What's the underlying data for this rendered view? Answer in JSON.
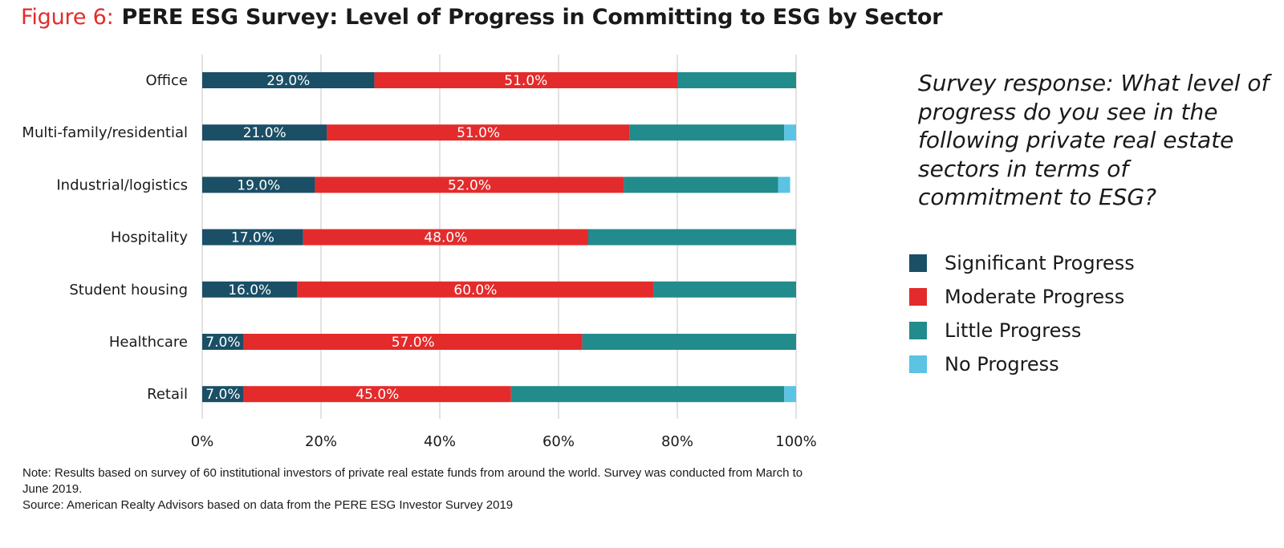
{
  "figure_label": "Figure 6:",
  "title": "PERE ESG Survey: Level of Progress in Committing to ESG by Sector",
  "question": "Survey response: What level of progress do you see in the following private real estate sectors in terms of commitment to ESG?",
  "note_line1": "Note: Results based on survey of 60 institutional investors of private real estate funds from around the world. Survey was conducted from March to June 2019.",
  "note_line2": "Source: American Realty Advisors based on data from the PERE ESG Investor Survey 2019",
  "colors": {
    "significant": "#1a4f66",
    "moderate": "#e32b2b",
    "little": "#228b8b",
    "none": "#5bc3e3",
    "grid": "#d9d9d9"
  },
  "chart_data": {
    "type": "bar",
    "orientation": "horizontal",
    "stacked": true,
    "title": "",
    "xlabel": "",
    "ylabel": "",
    "xlim": [
      0,
      100
    ],
    "x_ticks": [
      "0%",
      "20%",
      "40%",
      "60%",
      "80%",
      "100%"
    ],
    "grid": true,
    "legend_position": "right",
    "categories": [
      "Office",
      "Multi-family/residential",
      "Industrial/logistics",
      "Hospitality",
      "Student housing",
      "Healthcare",
      "Retail"
    ],
    "series": [
      {
        "name": "Significant Progress",
        "color": "#1a4f66",
        "values": [
          29,
          21,
          19,
          17,
          16,
          7,
          7
        ],
        "labels": [
          "29.0%",
          "21.0%",
          "19.0%",
          "17.0%",
          "16.0%",
          "7.0%",
          "7.0%"
        ]
      },
      {
        "name": "Moderate Progress",
        "color": "#e32b2b",
        "values": [
          51,
          51,
          52,
          48,
          60,
          57,
          45
        ],
        "labels": [
          "51.0%",
          "51.0%",
          "52.0%",
          "48.0%",
          "60.0%",
          "57.0%",
          "45.0%"
        ]
      },
      {
        "name": "Little Progress",
        "color": "#228b8b",
        "values": [
          20,
          26,
          26,
          35,
          24,
          36,
          46
        ]
      },
      {
        "name": "No Progress",
        "color": "#5bc3e3",
        "values": [
          0,
          2,
          2,
          0,
          0,
          0,
          2
        ]
      }
    ]
  }
}
